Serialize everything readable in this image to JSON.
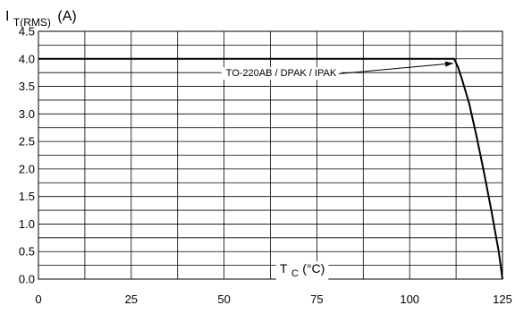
{
  "chart_data": {
    "type": "line",
    "title": "",
    "ylabel": {
      "main": "I",
      "sub": "T(RMS)",
      "unit": "(A)"
    },
    "xlabel": {
      "main": "T",
      "sub": "C",
      "unit": "(°C)"
    },
    "xlim": [
      0,
      125
    ],
    "ylim": [
      0,
      4.5
    ],
    "x_tick_labels": [
      "0",
      "25",
      "50",
      "75",
      "100",
      "125"
    ],
    "y_tick_labels": [
      "0.0",
      "0.5",
      "1.0",
      "1.5",
      "2.0",
      "2.5",
      "3.0",
      "3.5",
      "4.0",
      "4.5"
    ],
    "grid": true,
    "series": [
      {
        "name": "TO-220AB / DPAK / IPAK",
        "color": "#000000",
        "x": [
          0,
          112,
          113,
          114,
          116,
          118,
          120,
          122,
          124,
          125
        ],
        "y": [
          4.0,
          4.0,
          3.85,
          3.65,
          3.2,
          2.6,
          1.95,
          1.25,
          0.5,
          0.0
        ]
      }
    ],
    "annotations": [
      {
        "text": "TO-220AB / DPAK / IPAK",
        "points_to": {
          "x": 112,
          "y": 4.0
        }
      }
    ]
  }
}
